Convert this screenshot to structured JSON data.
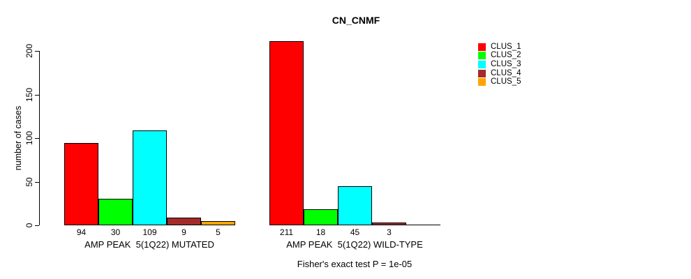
{
  "title": "CN_CNMF",
  "chart_data": {
    "type": "bar",
    "title": "CN_CNMF",
    "ylabel": "number of cases",
    "xlabel": "",
    "ylim": [
      0,
      200
    ],
    "yticks": [
      "0",
      "50",
      "100",
      "150",
      "200"
    ],
    "grid": false,
    "legend_position": "right",
    "bar_value_labels_shown": true,
    "groups": [
      "AMP PEAK  5(1Q22) MUTATED",
      "AMP PEAK  5(1Q22) WILD-TYPE"
    ],
    "series": [
      {
        "name": "CLUS_1",
        "color": "#FF0000",
        "values": [
          94,
          211
        ]
      },
      {
        "name": "CLUS_2",
        "color": "#00FF00",
        "values": [
          30,
          18
        ]
      },
      {
        "name": "CLUS_3",
        "color": "#00FFFF",
        "values": [
          109,
          45
        ]
      },
      {
        "name": "CLUS_4",
        "color": "#A52A2A",
        "values": [
          9,
          3
        ]
      },
      {
        "name": "CLUS_5",
        "color": "#FFA500",
        "values": [
          5,
          0
        ]
      }
    ],
    "annotation": "Fisher's exact test P = 1e-05",
    "axis_color": "#000000"
  }
}
